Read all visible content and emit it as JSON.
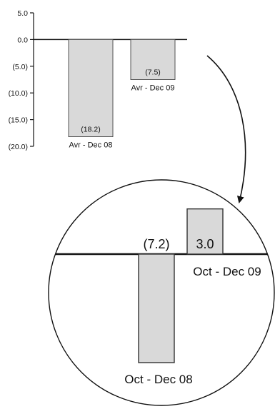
{
  "chart_data": [
    {
      "type": "bar",
      "categories": [
        "Avr - Dec 08",
        "Avr - Dec 09"
      ],
      "values": [
        -18.2,
        -7.5
      ],
      "value_labels": [
        "(18.2)",
        "(7.5)"
      ],
      "ylim": [
        -20,
        5
      ],
      "yticks": [
        5,
        0,
        -5,
        -10,
        -15,
        -20
      ],
      "ytick_labels": [
        "5.0",
        "0.0",
        "(5.0)",
        "(10.0)",
        "(15.0)",
        "(20.0)"
      ],
      "bar_color": "#d9d9d9"
    },
    {
      "type": "bar",
      "categories": [
        "Oct - Dec 08",
        "Oct - Dec 09"
      ],
      "values": [
        -7.2,
        3.0
      ],
      "value_labels": [
        "(7.2)",
        "3.0"
      ],
      "bar_color": "#d9d9d9"
    }
  ]
}
